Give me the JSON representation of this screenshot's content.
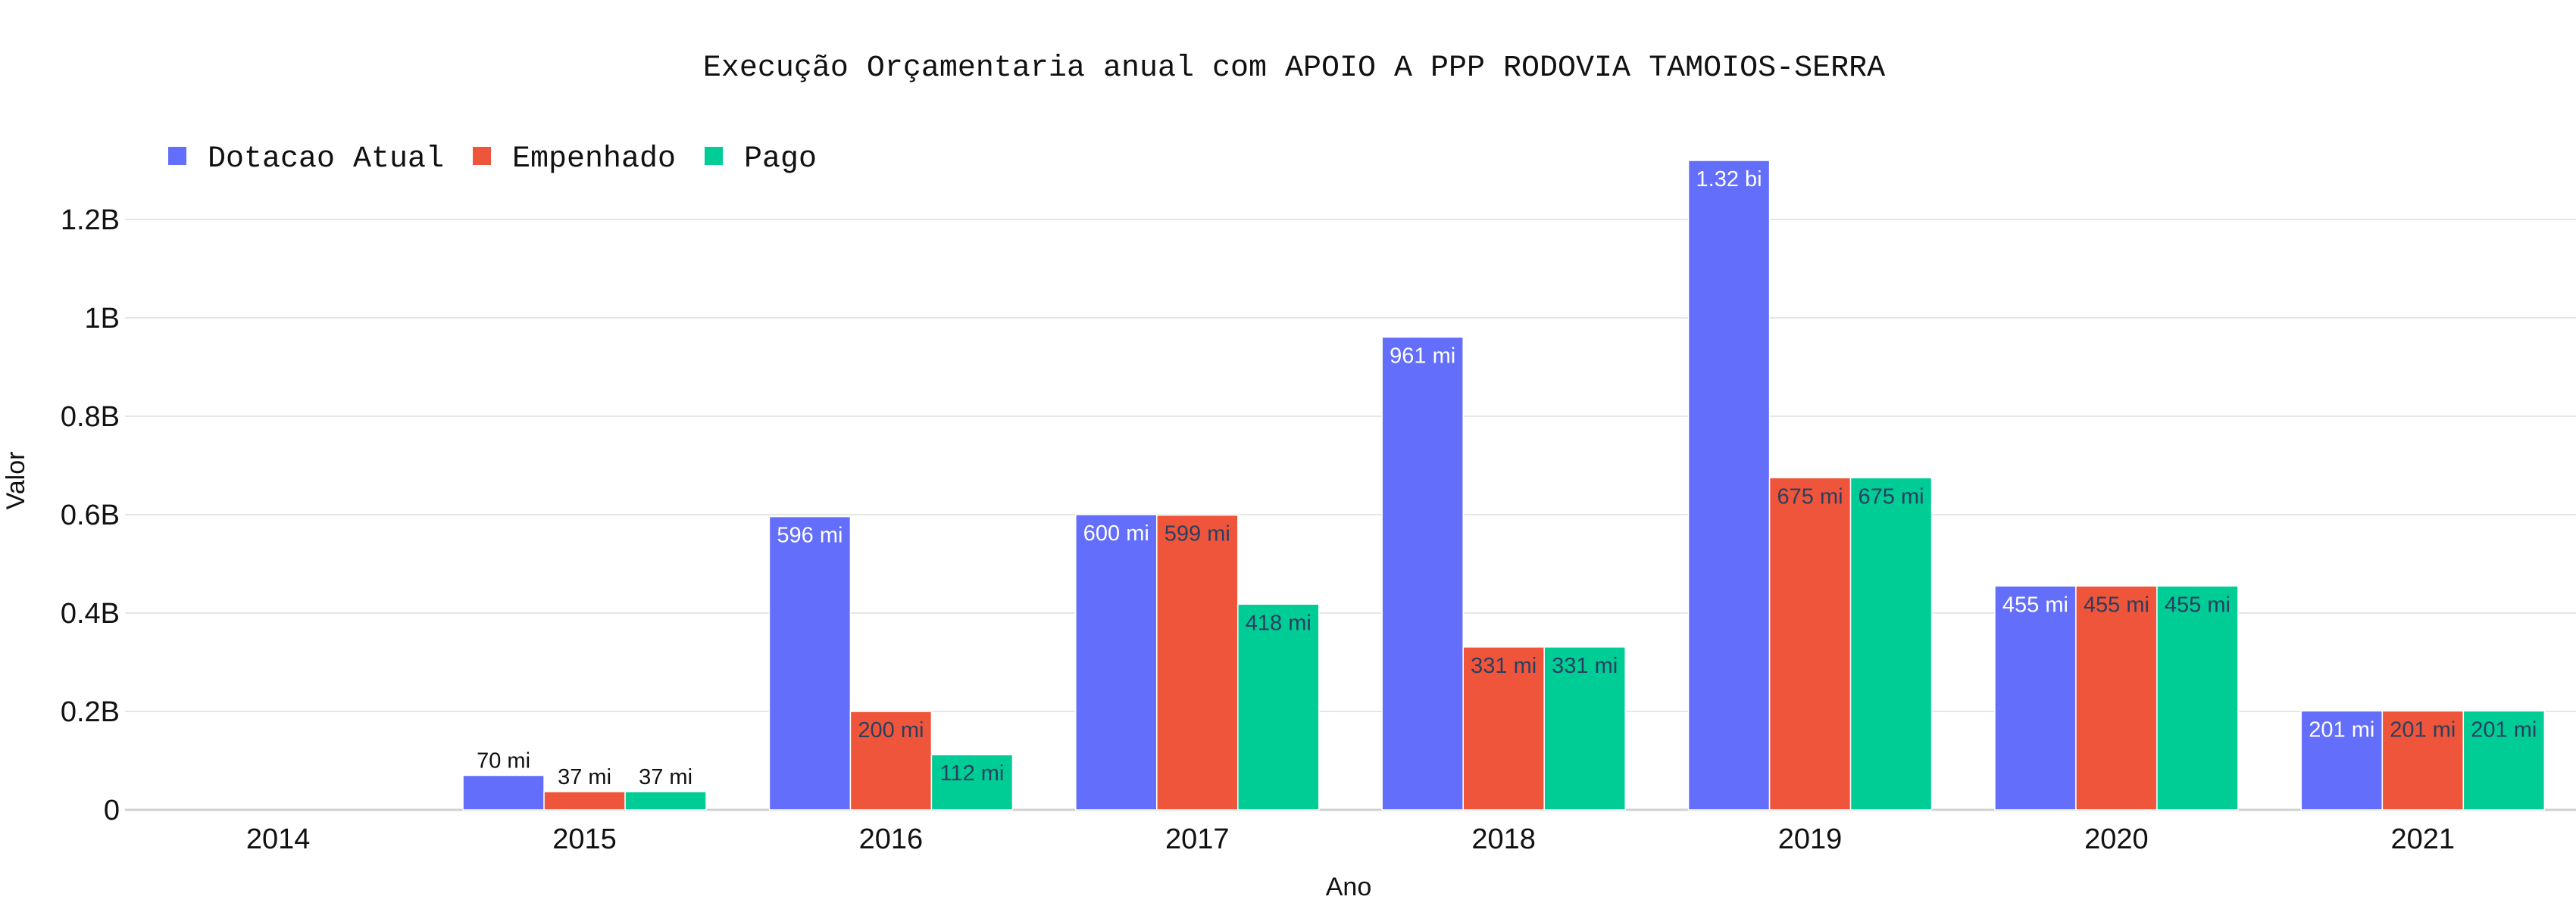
{
  "chart_data": {
    "type": "bar",
    "title": "Execução Orçamentaria anual com APOIO A PPP RODOVIA TAMOIOS-SERRA",
    "xlabel": "Ano",
    "ylabel": "Valor",
    "categories": [
      "2014",
      "2015",
      "2016",
      "2017",
      "2018",
      "2019",
      "2020",
      "2021"
    ],
    "ylim": [
      0,
      1400000000
    ],
    "yticks": [
      0,
      200000000,
      400000000,
      600000000,
      800000000,
      1000000000,
      1200000000
    ],
    "ytick_labels": [
      "0",
      "0.2B",
      "0.4B",
      "0.6B",
      "0.8B",
      "1B",
      "1.2B"
    ],
    "grid": true,
    "legend_position": "top-left",
    "series": [
      {
        "name": "Dotacao Atual",
        "color": "#636efa",
        "values": [
          0,
          70000000,
          596000000,
          600000000,
          961000000,
          1320000000,
          455000000,
          201000000
        ],
        "labels": [
          "",
          "70 mi",
          "596 mi",
          "600 mi",
          "961 mi",
          "1.32 bi",
          "455 mi",
          "201 mi"
        ]
      },
      {
        "name": "Empenhado",
        "color": "#ef553b",
        "values": [
          0,
          37000000,
          200000000,
          599000000,
          331000000,
          675000000,
          455000000,
          201000000
        ],
        "labels": [
          "",
          "37 mi",
          "200 mi",
          "599 mi",
          "331 mi",
          "675 mi",
          "455 mi",
          "201 mi"
        ]
      },
      {
        "name": "Pago",
        "color": "#00cc96",
        "values": [
          0,
          37000000,
          112000000,
          418000000,
          331000000,
          675000000,
          455000000,
          201000000
        ],
        "labels": [
          "",
          "37 mi",
          "112 mi",
          "418 mi",
          "331 mi",
          "675 mi",
          "455 mi",
          "201 mi"
        ]
      }
    ]
  }
}
